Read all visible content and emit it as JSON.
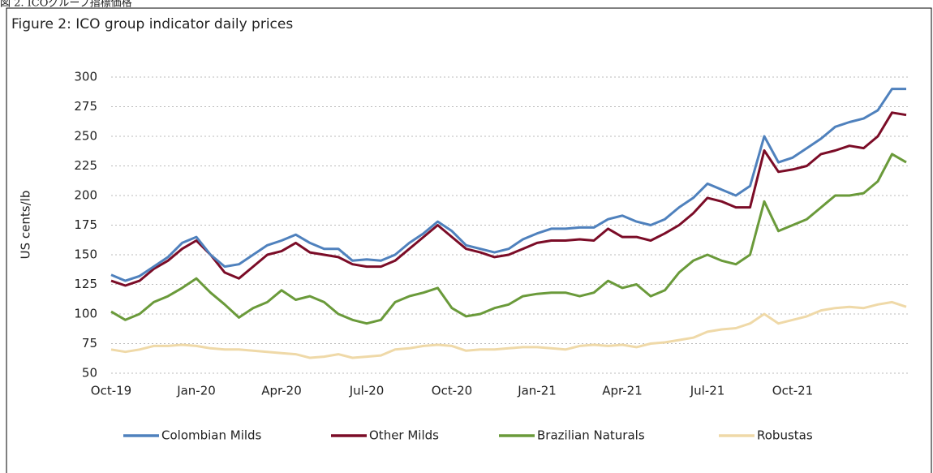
{
  "caption": "図 2. ICOグループ指標価格",
  "chart_data": {
    "type": "line",
    "title": "Figure 2: ICO group indicator daily prices",
    "ylabel": "US cents/lb",
    "categories": [
      "Oct-19",
      null,
      null,
      null,
      null,
      null,
      "Jan-20",
      null,
      null,
      null,
      null,
      null,
      "Apr-20",
      null,
      null,
      null,
      null,
      null,
      "Jul-20",
      null,
      null,
      null,
      null,
      null,
      "Oct-20",
      null,
      null,
      null,
      null,
      null,
      "Jan-21",
      null,
      null,
      null,
      null,
      null,
      "Apr-21",
      null,
      null,
      null,
      null,
      null,
      "Jul-21",
      null,
      null,
      null,
      null,
      null,
      "Oct-21",
      null,
      null,
      null,
      null,
      null,
      null,
      null,
      null
    ],
    "series": [
      {
        "name": "Colombian Milds",
        "color": "#4f81bd",
        "values": [
          133,
          128,
          132,
          140,
          148,
          160,
          165,
          150,
          140,
          142,
          150,
          158,
          162,
          167,
          160,
          155,
          155,
          145,
          146,
          145,
          150,
          160,
          168,
          178,
          170,
          158,
          155,
          152,
          155,
          163,
          168,
          172,
          172,
          173,
          173,
          180,
          183,
          178,
          175,
          180,
          190,
          198,
          210,
          205,
          200,
          208,
          250,
          228,
          232,
          240,
          248,
          258,
          262,
          265,
          272,
          290,
          290
        ]
      },
      {
        "name": "Other Milds",
        "color": "#7b0c27",
        "values": [
          128,
          124,
          128,
          138,
          145,
          155,
          162,
          150,
          135,
          130,
          140,
          150,
          153,
          160,
          152,
          150,
          148,
          142,
          140,
          140,
          145,
          155,
          165,
          175,
          165,
          155,
          152,
          148,
          150,
          155,
          160,
          162,
          162,
          163,
          162,
          172,
          165,
          165,
          162,
          168,
          175,
          185,
          198,
          195,
          190,
          190,
          238,
          220,
          222,
          225,
          235,
          238,
          242,
          240,
          250,
          270,
          268
        ]
      },
      {
        "name": "Brazilian Naturals",
        "color": "#6a9a3a",
        "values": [
          102,
          95,
          100,
          110,
          115,
          122,
          130,
          118,
          108,
          97,
          105,
          110,
          120,
          112,
          115,
          110,
          100,
          95,
          92,
          95,
          110,
          115,
          118,
          122,
          105,
          98,
          100,
          105,
          108,
          115,
          117,
          118,
          118,
          115,
          118,
          128,
          122,
          125,
          115,
          120,
          135,
          145,
          150,
          145,
          142,
          150,
          195,
          170,
          175,
          180,
          190,
          200,
          200,
          202,
          212,
          235,
          228
        ]
      },
      {
        "name": "Robustas",
        "color": "#efd9a8",
        "values": [
          70,
          68,
          70,
          73,
          73,
          74,
          73,
          71,
          70,
          70,
          69,
          68,
          67,
          66,
          63,
          64,
          66,
          63,
          64,
          65,
          70,
          71,
          73,
          74,
          73,
          69,
          70,
          70,
          71,
          72,
          72,
          71,
          70,
          73,
          74,
          73,
          74,
          72,
          75,
          76,
          78,
          80,
          85,
          87,
          88,
          92,
          100,
          92,
          95,
          98,
          103,
          105,
          106,
          105,
          108,
          110,
          106
        ]
      }
    ],
    "ylim": [
      50,
      300
    ],
    "yticks": [
      50,
      75,
      100,
      125,
      150,
      175,
      200,
      225,
      250,
      275,
      300
    ],
    "grid": true,
    "legend": "bottom"
  }
}
